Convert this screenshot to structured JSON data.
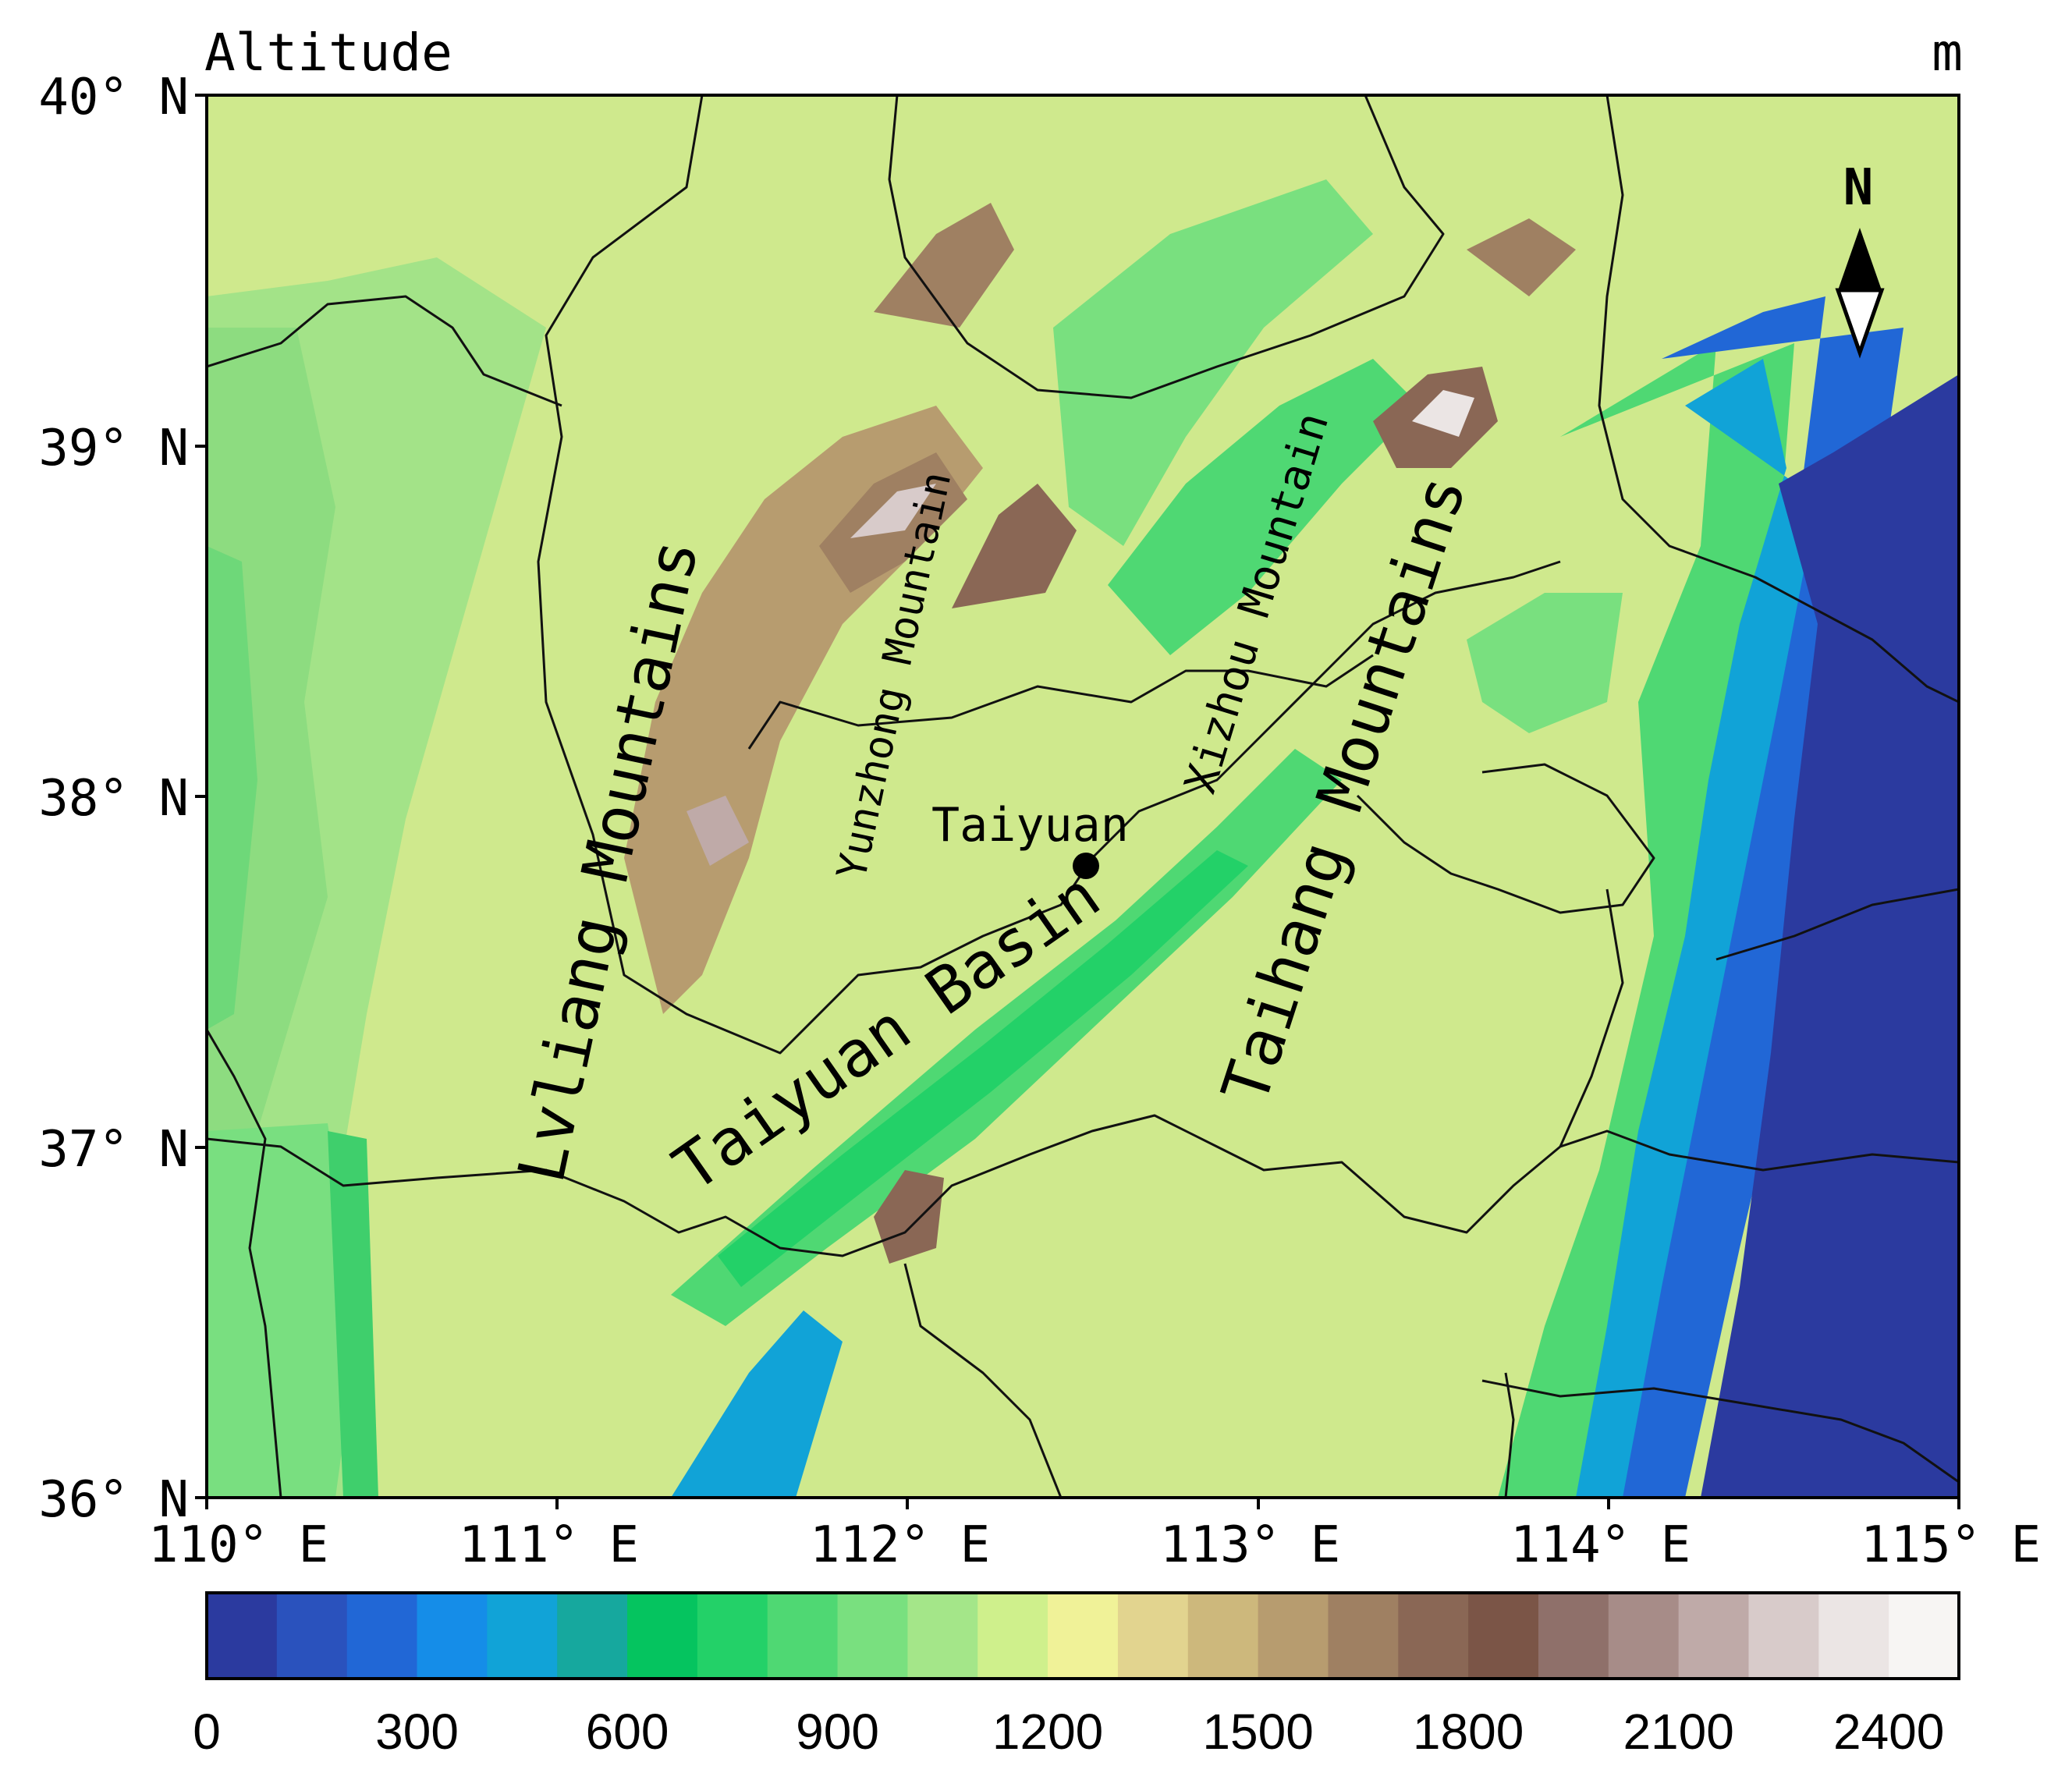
{
  "map": {
    "title": "Altitude",
    "unit": "m",
    "north_label": "N",
    "city_label": "Taiyuan",
    "feature_labels": {
      "lvliang": "Lvliang Mountains",
      "yunzhong": "Yunzhong Mountain",
      "xizhou": "Xizhou Mountain",
      "taihang": "Taihang Mountains",
      "basin": "Taiyuan Basin"
    },
    "lat_ticks": [
      "40° N",
      "39° N",
      "38° N",
      "37° N",
      "36° N"
    ],
    "lon_ticks": [
      "110° E",
      "111° E",
      "112° E",
      "113° E",
      "114° E",
      "115° E"
    ]
  },
  "colorbar": {
    "tick_labels": [
      "0",
      "300",
      "600",
      "900",
      "1200",
      "1500",
      "1800",
      "2100",
      "2400"
    ],
    "colors": [
      "#2b3a9f",
      "#2a52bd",
      "#2167d6",
      "#158de8",
      "#11a3d7",
      "#16a89e",
      "#05c45f",
      "#23d168",
      "#4fd873",
      "#79e07f",
      "#a4e689",
      "#cff08c",
      "#f0f298",
      "#e2d48f",
      "#cdb87c",
      "#b79c6f",
      "#9f8062",
      "#8a6755",
      "#7b5547",
      "#8f706a",
      "#a78c88",
      "#bfaaa8",
      "#d8cbca",
      "#ebe5e4",
      "#f7f5f3"
    ]
  }
}
